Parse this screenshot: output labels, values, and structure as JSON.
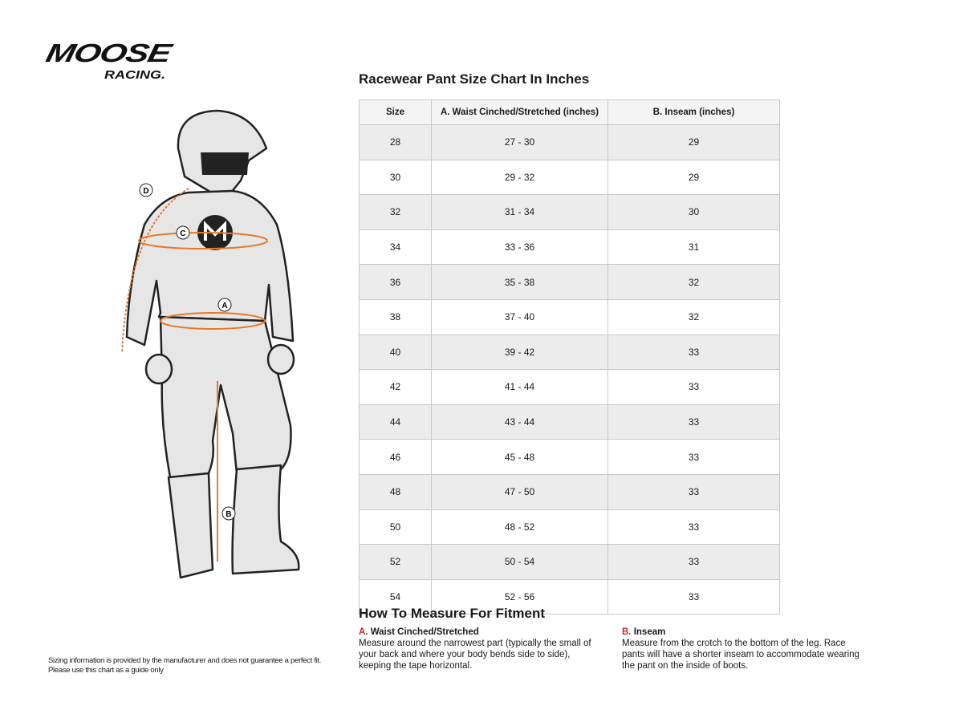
{
  "logo": {
    "line1": "MOOSE",
    "line2": "RACING."
  },
  "figure": {
    "labels": [
      "A",
      "B",
      "C",
      "D"
    ],
    "accent_color": "#e8782a"
  },
  "title": "Racewear Pant Size Chart In Inches",
  "table": {
    "headers": [
      "Size",
      "A. Waist Cinched/Stretched (inches)",
      "B. Inseam (inches)"
    ],
    "rows": [
      [
        "28",
        "27 - 30",
        "29"
      ],
      [
        "30",
        "29 - 32",
        "29"
      ],
      [
        "32",
        "31 - 34",
        "30"
      ],
      [
        "34",
        "33 - 36",
        "31"
      ],
      [
        "36",
        "35 - 38",
        "32"
      ],
      [
        "38",
        "37 - 40",
        "32"
      ],
      [
        "40",
        "39 - 42",
        "33"
      ],
      [
        "42",
        "41 - 44",
        "33"
      ],
      [
        "44",
        "43 - 44",
        "33"
      ],
      [
        "46",
        "45 - 48",
        "33"
      ],
      [
        "48",
        "47 - 50",
        "33"
      ],
      [
        "50",
        "48 - 52",
        "33"
      ],
      [
        "52",
        "50 - 54",
        "33"
      ],
      [
        "54",
        "52 - 56",
        "33"
      ]
    ]
  },
  "how_to": {
    "title": "How To Measure For Fitment",
    "a": {
      "key": "A.",
      "heading": "Waist Cinched/Stretched",
      "text": "Measure around the narrowest part (typically the small of your back and where your body bends side to side), keeping the tape horizontal."
    },
    "b": {
      "key": "B.",
      "heading": "Inseam",
      "text": "Measure from the crotch to the bottom of the leg. Race pants will have a shorter inseam to accommodate wearing the pant on the inside of boots."
    }
  },
  "disclaimer": {
    "line1": "Sizing information is provided by the manufacturer and does not guarantee a perfect fit.",
    "line2": "Please use this chart as a guide only"
  }
}
